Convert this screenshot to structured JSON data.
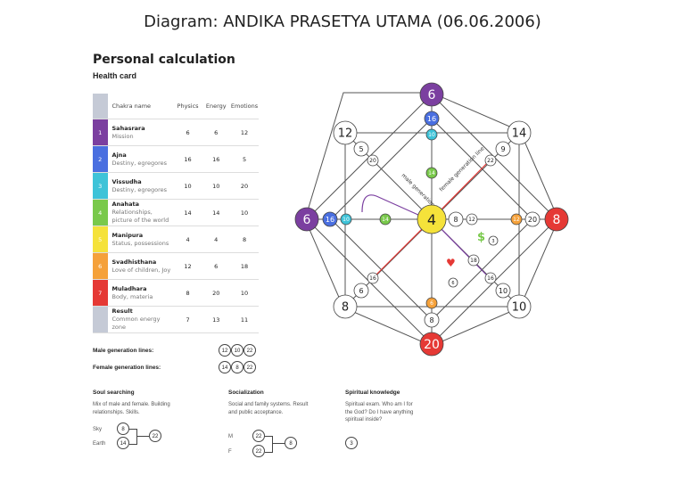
{
  "title": "Diagram: ANDIKA PRASETYA UTAMA  (06.06.2006)",
  "heading": "Personal calculation",
  "subheading": "Health card",
  "table": {
    "headers": [
      "Chakra name",
      "Physics",
      "Energy",
      "Emotions"
    ],
    "rows": [
      {
        "num": "1",
        "name": "Sahasrara",
        "desc": "Mission",
        "physics": "6",
        "energy": "6",
        "emotions": "12",
        "color": "#7b3fa0"
      },
      {
        "num": "2",
        "name": "Ajna",
        "desc": "Destiny, egregores",
        "physics": "16",
        "energy": "16",
        "emotions": "5",
        "color": "#4a6fe0"
      },
      {
        "num": "3",
        "name": "Vissudha",
        "desc": "Destiny, egregores",
        "physics": "10",
        "energy": "10",
        "emotions": "20",
        "color": "#3ec3d8"
      },
      {
        "num": "4",
        "name": "Anahata",
        "desc": "Relationships, picture of the world",
        "physics": "14",
        "energy": "14",
        "emotions": "10",
        "color": "#79c94b"
      },
      {
        "num": "5",
        "name": "Manipura",
        "desc": "Status, possessions",
        "physics": "4",
        "energy": "4",
        "emotions": "8",
        "color": "#f5e23a"
      },
      {
        "num": "6",
        "name": "Svadhisthana",
        "desc": "Love of children, Joy",
        "physics": "12",
        "energy": "6",
        "emotions": "18",
        "color": "#f5a13a"
      },
      {
        "num": "7",
        "name": "Muladhara",
        "desc": "Body, materia",
        "physics": "8",
        "energy": "20",
        "emotions": "10",
        "color": "#e53935"
      },
      {
        "num": "",
        "name": "Result",
        "desc": "Common energy zone",
        "physics": "7",
        "energy": "13",
        "emotions": "11",
        "color": "#c5cad6"
      }
    ]
  },
  "male_lines": {
    "label": "Male generation lines:",
    "values": [
      "12",
      "10",
      "22"
    ]
  },
  "female_lines": {
    "label": "Female generation lines:",
    "values": [
      "14",
      "8",
      "22"
    ]
  },
  "soul": {
    "title": "Soul searching",
    "text": "Mix of male and female. Building relationships. Skills.",
    "sky_label": "Sky",
    "sky": "8",
    "earth_label": "Earth",
    "earth": "14",
    "result": "22"
  },
  "social": {
    "title": "Socialization",
    "text": "Social and family systems. Result and public acceptance.",
    "m_label": "M",
    "m": "22",
    "f_label": "F",
    "f": "22",
    "result": "8"
  },
  "spiritual": {
    "title": "Spiritual knowledge",
    "text": "Spiritual exam. Who am I for the God? Do I have anything spiritual inside?",
    "value": "3"
  },
  "diagram": {
    "top": "6",
    "left": "6",
    "right": "8",
    "bottom": "20",
    "center": "4",
    "corner_tl": "12",
    "corner_tr": "14",
    "corner_bl": "8",
    "corner_br": "10",
    "top_inner": "16",
    "top_inner2": "10",
    "left_inner": "16",
    "left_inner2": "10",
    "right_inner": "20",
    "right_inner2": "12",
    "bottom_inner": "8",
    "bottom_inner2": "6",
    "tl_small": "5",
    "tl_small2": "20",
    "tr_small": "9",
    "tr_small2": "22",
    "bl_small": "6",
    "bl_small2": "16",
    "br_small": "10",
    "br_small2": "16",
    "center_right1": "8",
    "center_right2": "12",
    "mid_top": "14",
    "mid_left": "14",
    "br_chain1": "18",
    "br_chain2": "3",
    "br_chain3": "6",
    "male_line_label": "male generation line",
    "female_line_label": "female generation line",
    "colors": {
      "purple": "#7b3fa0",
      "blue": "#4a6fe0",
      "cyan": "#3ec3d8",
      "green": "#79c94b",
      "yellow": "#f5e23a",
      "orange": "#f5a13a",
      "red": "#e53935"
    }
  }
}
